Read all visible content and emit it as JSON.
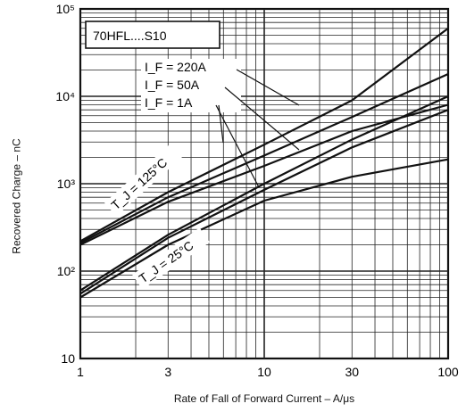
{
  "chart_data": {
    "type": "line",
    "title": "",
    "xlabel": "Rate of Fall of Forward Current – A/μs",
    "ylabel": "Recovered Charge – nC",
    "xscale": "log",
    "yscale": "log",
    "xlim": [
      1,
      100
    ],
    "ylim": [
      10,
      100000
    ],
    "grid": true,
    "x_ticks": [
      1,
      3,
      10,
      30,
      100
    ],
    "x_tick_labels": [
      "1",
      "3",
      "10",
      "30",
      "100"
    ],
    "y_ticks": [
      10,
      100,
      1000,
      10000,
      100000
    ],
    "y_tick_labels": [
      "10",
      "10²",
      "10³",
      "10⁴",
      "10⁵"
    ],
    "annotations": {
      "part": "70HFL....S10",
      "currents": [
        "I_F = 220A",
        "I_F = 50A",
        "I_F = 1A"
      ],
      "temp_high": "T_J = 125°C",
      "temp_low": "T_J = 25°C"
    },
    "series": [
      {
        "temp": "125°C",
        "current": "220A",
        "x": [
          1,
          3,
          10,
          30,
          100
        ],
        "y": [
          220,
          800,
          2800,
          9000,
          60000
        ]
      },
      {
        "temp": "125°C",
        "current": "50A",
        "x": [
          1,
          3,
          10,
          30,
          100
        ],
        "y": [
          210,
          700,
          2100,
          5800,
          18000
        ]
      },
      {
        "temp": "125°C",
        "current": "1A",
        "x": [
          1,
          3,
          10,
          30,
          100
        ],
        "y": [
          200,
          620,
          1600,
          4000,
          8000
        ]
      },
      {
        "temp": "25°C",
        "current": "220A",
        "x": [
          1,
          3,
          10,
          30,
          100
        ],
        "y": [
          60,
          260,
          1000,
          3200,
          10000
        ]
      },
      {
        "temp": "25°C",
        "current": "50A",
        "x": [
          1,
          3,
          10,
          30,
          100
        ],
        "y": [
          55,
          240,
          850,
          2600,
          7000
        ]
      },
      {
        "temp": "25°C",
        "current": "1A",
        "x": [
          1,
          3,
          10,
          30,
          100
        ],
        "y": [
          50,
          200,
          640,
          1200,
          1900
        ]
      }
    ]
  }
}
